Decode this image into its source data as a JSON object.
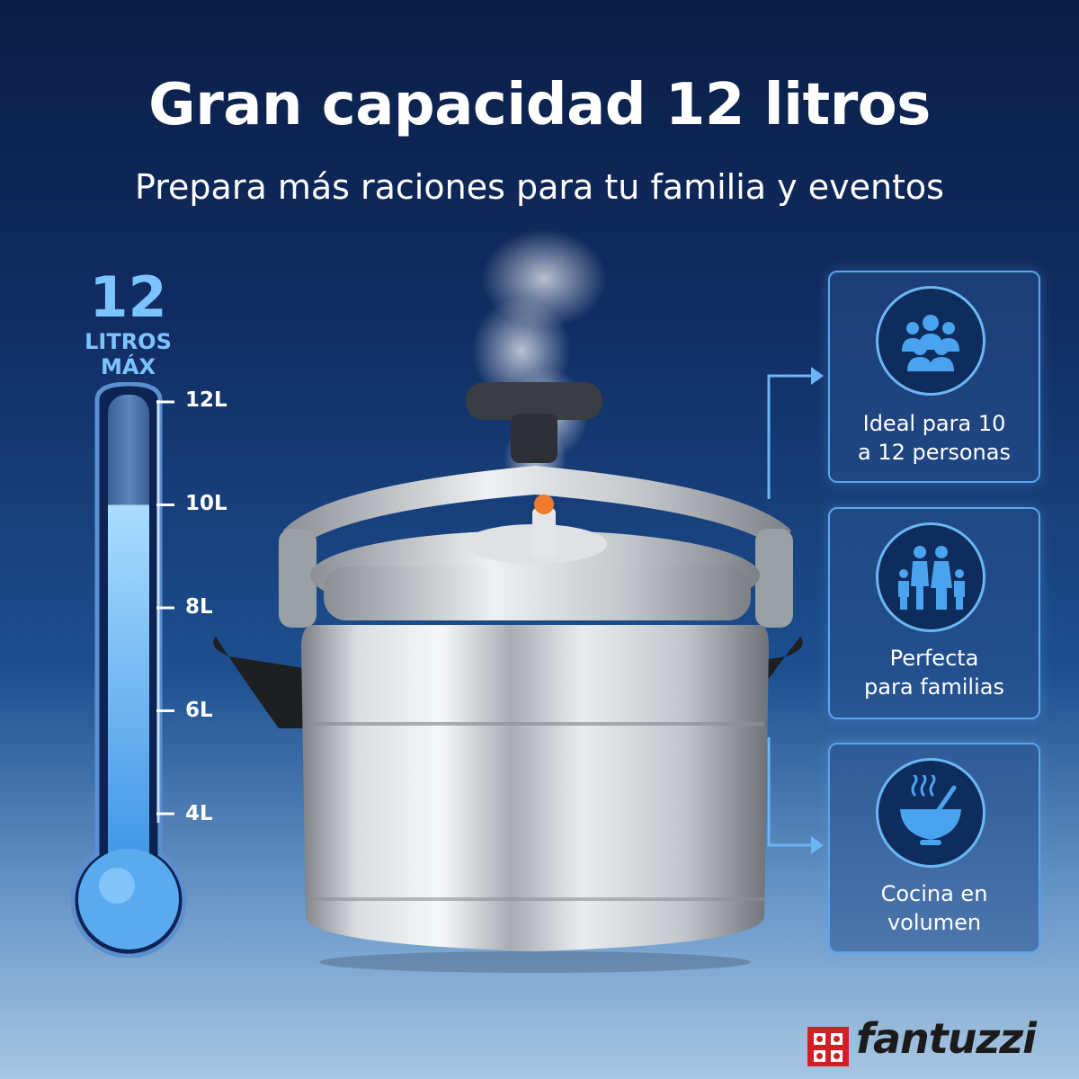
{
  "header": {
    "title": "Gran capacidad 12 litros",
    "subtitle": "Prepara más raciones para tu familia y eventos"
  },
  "capacity": {
    "number": "12",
    "unit_line1": "LITROS",
    "unit_line2": "MÁX",
    "fill_level_liters": 10,
    "scale_max_liters": 12,
    "ticks": [
      "12L",
      "10L",
      "8L",
      "6L",
      "4L"
    ]
  },
  "features": [
    {
      "icon": "group-people-icon",
      "line1": "Ideal para 10",
      "line2": "a 12 personas"
    },
    {
      "icon": "family-icon",
      "line1": "Perfecta",
      "line2": "para familias"
    },
    {
      "icon": "bowl-icon",
      "line1": "Cocina en",
      "line2": "volumen"
    }
  ],
  "brand": {
    "name": "fantuzzi",
    "color": "#d21f26"
  },
  "colors": {
    "accent": "#7cc4ff",
    "card_border": "#5aa6ea"
  }
}
